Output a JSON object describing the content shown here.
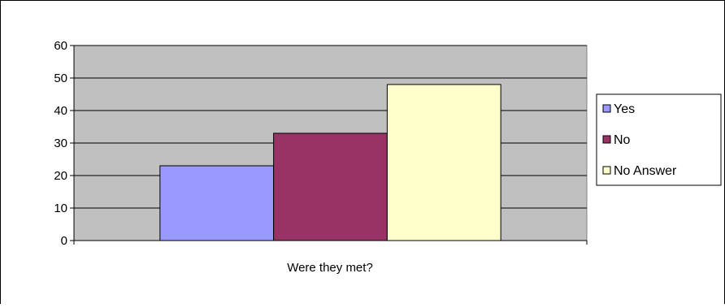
{
  "chart_data": {
    "type": "bar",
    "title": "",
    "xlabel": "",
    "ylabel": "",
    "categories": [
      "Were they met?"
    ],
    "series": [
      {
        "name": "Yes",
        "values": [
          23
        ],
        "color": "#9999ff"
      },
      {
        "name": "No",
        "values": [
          33
        ],
        "color": "#993366"
      },
      {
        "name": "No Answer",
        "values": [
          48
        ],
        "color": "#ffffcc"
      }
    ],
    "ylim": [
      0,
      60
    ],
    "yticks": [
      "0",
      "10",
      "20",
      "30",
      "40",
      "50",
      "60"
    ],
    "grid": true,
    "plot_background": "#c0c0c0",
    "legend_position": "right"
  }
}
